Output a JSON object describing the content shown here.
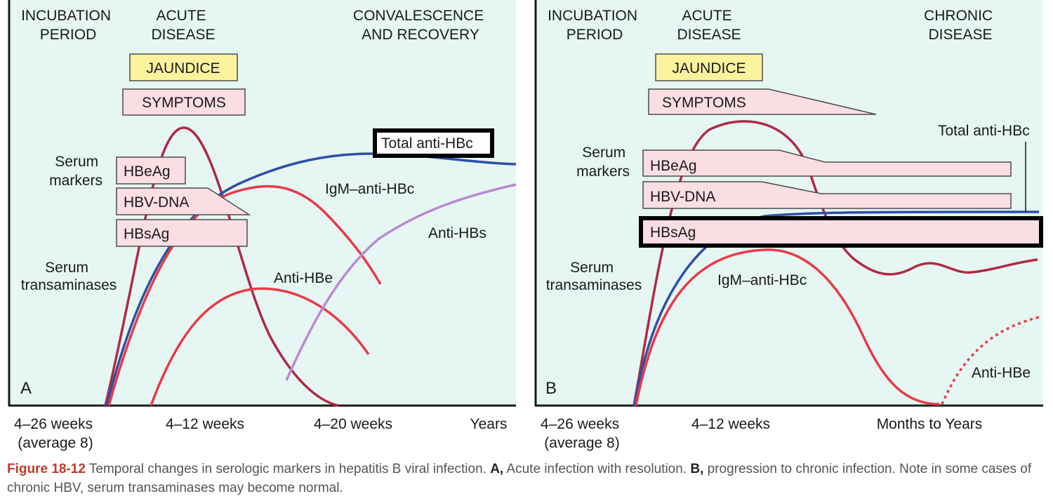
{
  "colors": {
    "panel_bg": "#e6f6f3",
    "axis": "#1a1a1a",
    "text": "#1a1a1a",
    "jaundice_fill": "#fbf49e",
    "marker_fill": "#fbdde4",
    "marker_stroke": "#4d4d4d",
    "transaminase": "#b02a45",
    "anti_hbc_total": "#2e4fa8",
    "igm_anti_hbc": "#ea3a47",
    "anti_hbe": "#ea3a47",
    "anti_hbs": "#b98ad1",
    "highlight_box": "#000000",
    "caption_label": "#c0392b",
    "caption_text": "#555555"
  },
  "panel_a": {
    "phase_incubation": [
      "INCUBATION",
      "PERIOD"
    ],
    "phase_acute": [
      "ACUTE",
      "DISEASE"
    ],
    "phase_late": [
      "CONVALESCENCE",
      "AND RECOVERY"
    ],
    "jaundice": "JAUNDICE",
    "symptoms": "SYMPTOMS",
    "serum_markers": [
      "Serum",
      "markers"
    ],
    "hbeag": "HBeAg",
    "hbv_dna": "HBV-DNA",
    "hbsag": "HBsAg",
    "serum_transaminases": [
      "Serum",
      "transaminases"
    ],
    "total_anti_hbc": "Total anti-HBc",
    "igm_anti_hbc": "IgM–anti-HBc",
    "anti_hbs": "Anti-HBs",
    "anti_hbe": "Anti-HBe",
    "panel_letter": "A",
    "x_ticks": [
      [
        "4–26 weeks",
        "(average 8)"
      ],
      [
        "4–12 weeks"
      ],
      [
        "4–20 weeks"
      ],
      [
        "Years"
      ]
    ]
  },
  "panel_b": {
    "phase_incubation": [
      "INCUBATION",
      "PERIOD"
    ],
    "phase_acute": [
      "ACUTE",
      "DISEASE"
    ],
    "phase_late": [
      "CHRONIC",
      "DISEASE"
    ],
    "jaundice": "JAUNDICE",
    "symptoms": "SYMPTOMS",
    "serum_markers": [
      "Serum",
      "markers"
    ],
    "hbeag": "HBeAg",
    "hbv_dna": "HBV-DNA",
    "hbsag": "HBsAg",
    "serum_transaminases": [
      "Serum",
      "transaminases"
    ],
    "total_anti_hbc": "Total anti-HBc",
    "igm_anti_hbc": "IgM–anti-HBc",
    "anti_hbe": "Anti-HBe",
    "panel_letter": "B",
    "x_ticks": [
      [
        "4–26 weeks",
        "(average 8)"
      ],
      [
        "4–12 weeks"
      ],
      [
        "Months to Years"
      ]
    ]
  },
  "caption": {
    "label": "Figure 18-12",
    "text1": " Temporal changes in serologic markers in hepatitis B viral infection. ",
    "a_label": "A,",
    "text2": " Acute infection with resolution. ",
    "b_label": "B,",
    "text3": " progression to chronic infection. Note in some cases of chronic HBV, serum transaminases may become normal."
  }
}
